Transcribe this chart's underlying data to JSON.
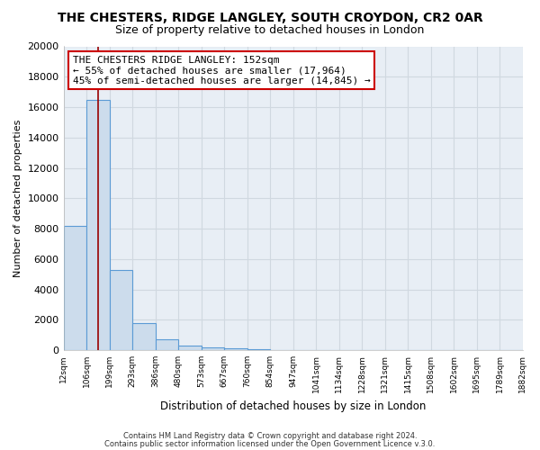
{
  "title": "THE CHESTERS, RIDGE LANGLEY, SOUTH CROYDON, CR2 0AR",
  "subtitle": "Size of property relative to detached houses in London",
  "xlabel": "Distribution of detached houses by size in London",
  "ylabel": "Number of detached properties",
  "bar_values": [
    8200,
    16500,
    5300,
    1800,
    700,
    300,
    200,
    100,
    50,
    0,
    0,
    0,
    0,
    0,
    0,
    0,
    0,
    0,
    0,
    0
  ],
  "bar_labels": [
    "12sqm",
    "106sqm",
    "199sqm",
    "293sqm",
    "386sqm",
    "480sqm",
    "573sqm",
    "667sqm",
    "760sqm",
    "854sqm",
    "947sqm",
    "1041sqm",
    "1134sqm",
    "1228sqm",
    "1321sqm",
    "1415sqm",
    "1508sqm",
    "1602sqm",
    "1695sqm",
    "1789sqm",
    "1882sqm"
  ],
  "bar_color": "#ccdcec",
  "bar_edge_color": "#5b9bd5",
  "bar_edge_width": 0.8,
  "red_line_x": 1.5,
  "ylim": [
    0,
    20000
  ],
  "yticks": [
    0,
    2000,
    4000,
    6000,
    8000,
    10000,
    12000,
    14000,
    16000,
    18000,
    20000
  ],
  "annotation_title": "THE CHESTERS RIDGE LANGLEY: 152sqm",
  "annotation_line1": "← 55% of detached houses are smaller (17,964)",
  "annotation_line2": "45% of semi-detached houses are larger (14,845) →",
  "annotation_box_color": "#ffffff",
  "annotation_box_edge": "#cc0000",
  "footer1": "Contains HM Land Registry data © Crown copyright and database right 2024.",
  "footer2": "Contains public sector information licensed under the Open Government Licence v.3.0.",
  "bg_color": "#ffffff",
  "plot_bg_color": "#e8eef5",
  "grid_color": "#d0d8e0",
  "title_fontsize": 10,
  "subtitle_fontsize": 9
}
